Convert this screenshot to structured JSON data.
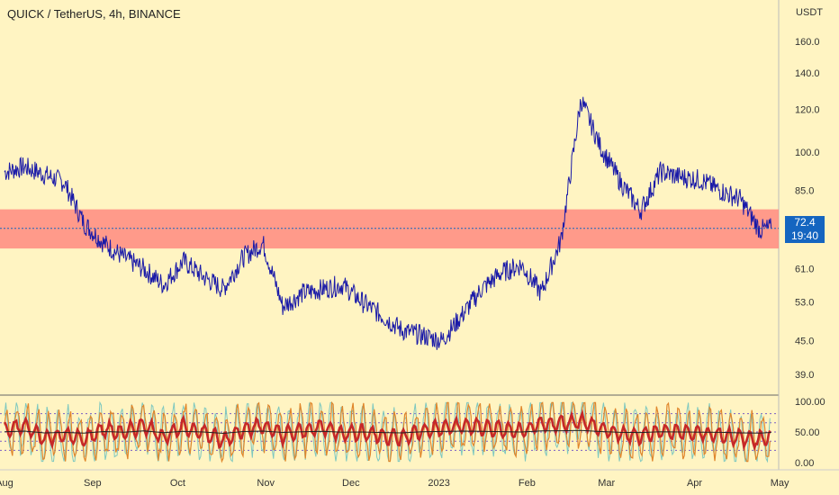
{
  "header": {
    "title": "QUICK / TetherUS, 4h, BINANCE",
    "currency": "USDT"
  },
  "price_badge": {
    "price": "72.4",
    "countdown": "19:40"
  },
  "colors": {
    "background": "#fff4c2",
    "price_line": "#1a1aa8",
    "zone": "#ff8a80",
    "badge": "#1565c0",
    "osc_red": "#c62828",
    "osc_orange": "#e0862b",
    "osc_teal": "#7ec8c0",
    "osc_black": "#222222",
    "guides": "#7b5cc4"
  },
  "chart_data": [
    {
      "type": "line",
      "name": "price",
      "y_scale": "log",
      "ylim": [
        36,
        170
      ],
      "yticks": [
        39.0,
        45.0,
        53.0,
        61.0,
        85.0,
        100.0,
        120.0,
        140.0,
        160.0
      ],
      "xticks": [
        "Aug",
        "Sep",
        "Oct",
        "Nov",
        "Dec",
        "2023",
        "Feb",
        "Mar",
        "Apr",
        "May"
      ],
      "zone": [
        66.5,
        78.5
      ],
      "current_price": 72.4,
      "x": [
        "Aug 1",
        "Aug 8",
        "Aug 15",
        "Aug 22",
        "Aug 29",
        "Sep 5",
        "Sep 12",
        "Sep 19",
        "Sep 26",
        "Oct 3",
        "Oct 10",
        "Oct 17",
        "Oct 24",
        "Oct 31",
        "Nov 7",
        "Nov 14",
        "Nov 21",
        "Nov 28",
        "Dec 5",
        "Dec 12",
        "Dec 19",
        "Dec 26",
        "Jan 2",
        "Jan 9",
        "Jan 16",
        "Jan 23",
        "Jan 30",
        "Feb 6",
        "Feb 13",
        "Feb 20",
        "Feb 27",
        "Mar 6",
        "Mar 13",
        "Mar 20",
        "Mar 27",
        "Apr 3",
        "Apr 10",
        "Apr 17",
        "Apr 24",
        "Apr 28"
      ],
      "values": [
        92,
        94,
        91,
        88,
        74,
        68,
        64,
        61,
        57,
        63,
        59,
        56,
        64,
        68,
        52,
        55,
        56,
        57,
        53,
        50,
        47,
        46,
        45,
        50,
        56,
        60,
        62,
        55,
        69,
        125,
        102,
        88,
        78,
        92,
        90,
        89,
        85,
        82,
        72,
        72.4
      ]
    },
    {
      "type": "line",
      "name": "oscillator",
      "ylim": [
        0,
        100
      ],
      "yticks": [
        0.0,
        50.0,
        100.0
      ],
      "guides": [
        20,
        35,
        50,
        65,
        80
      ],
      "x": [
        "Aug 1",
        "Aug 8",
        "Aug 15",
        "Aug 22",
        "Aug 29",
        "Sep 5",
        "Sep 12",
        "Sep 19",
        "Sep 26",
        "Oct 3",
        "Oct 10",
        "Oct 17",
        "Oct 24",
        "Oct 31",
        "Nov 7",
        "Nov 14",
        "Nov 21",
        "Nov 28",
        "Dec 5",
        "Dec 12",
        "Dec 19",
        "Dec 26",
        "Jan 2",
        "Jan 9",
        "Jan 16",
        "Jan 23",
        "Jan 30",
        "Feb 6",
        "Feb 13",
        "Feb 20",
        "Feb 27",
        "Mar 6",
        "Mar 13",
        "Mar 20",
        "Mar 27",
        "Apr 3",
        "Apr 10",
        "Apr 17",
        "Apr 24",
        "Apr 28"
      ],
      "values": [
        52,
        60,
        40,
        45,
        38,
        55,
        48,
        62,
        42,
        58,
        50,
        35,
        55,
        60,
        45,
        52,
        58,
        48,
        50,
        44,
        40,
        52,
        56,
        60,
        58,
        54,
        50,
        62,
        64,
        68,
        55,
        46,
        44,
        52,
        50,
        48,
        46,
        40,
        38,
        45
      ]
    }
  ]
}
